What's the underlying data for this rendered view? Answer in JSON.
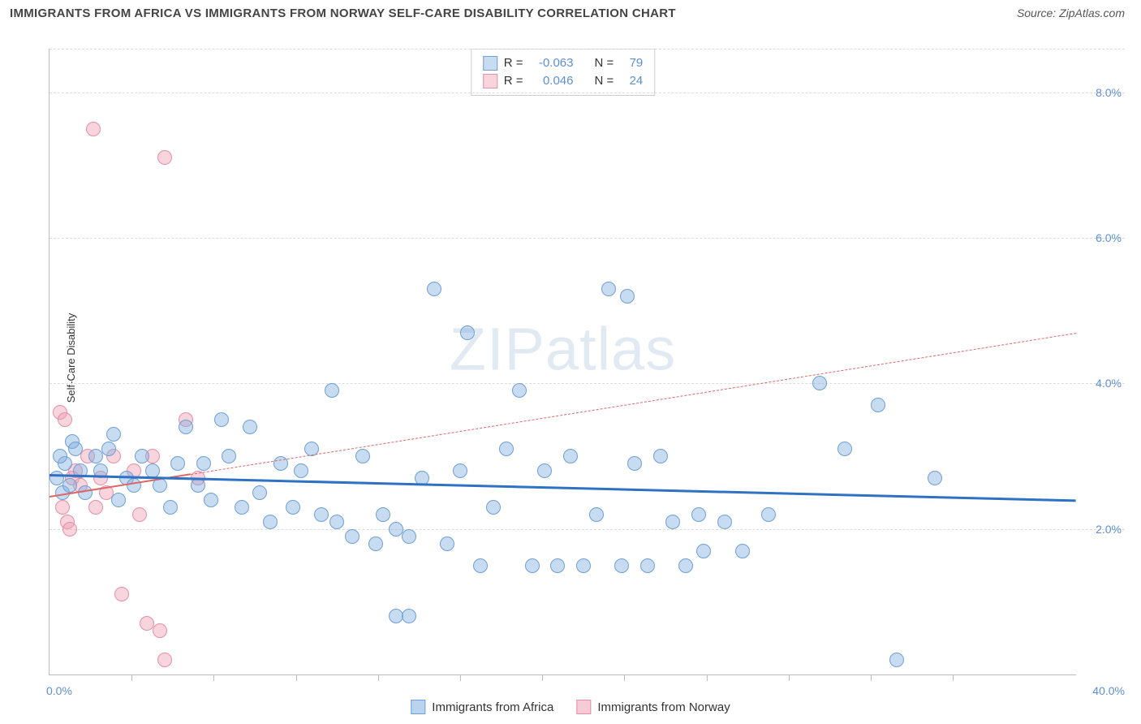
{
  "header": {
    "title": "IMMIGRANTS FROM AFRICA VS IMMIGRANTS FROM NORWAY SELF-CARE DISABILITY CORRELATION CHART",
    "source": "Source: ZipAtlas.com"
  },
  "axes": {
    "y_label": "Self-Care Disability",
    "x_min": 0,
    "x_max": 40,
    "y_min": 0,
    "y_max": 8.6,
    "x_origin_label": "0.0%",
    "x_max_label": "40.0%",
    "y_ticks": [
      {
        "v": 2.0,
        "label": "2.0%"
      },
      {
        "v": 4.0,
        "label": "4.0%"
      },
      {
        "v": 6.0,
        "label": "6.0%"
      },
      {
        "v": 8.0,
        "label": "8.0%"
      }
    ],
    "x_tick_positions": [
      3.2,
      6.4,
      9.6,
      12.8,
      16.0,
      19.2,
      22.4,
      25.6,
      28.8,
      32.0,
      35.2
    ],
    "axis_color": "#bbbbbb",
    "grid_color": "#dddddd",
    "tick_text_color": "#5b8fd6"
  },
  "watermark": "ZIPatlas",
  "series": {
    "africa": {
      "label": "Immigrants from Africa",
      "color_fill": "rgba(130,175,225,0.45)",
      "color_stroke": "#6f9fd6",
      "reg_color": "#2f72c4",
      "reg_width": 3,
      "reg_dash": "solid",
      "marker_radius": 9,
      "R": "-0.063",
      "N": "79",
      "regression": {
        "x1": 0,
        "y1": 2.75,
        "x2": 40,
        "y2": 2.4
      },
      "points": [
        [
          0.3,
          2.7
        ],
        [
          0.6,
          2.9
        ],
        [
          0.9,
          3.2
        ],
        [
          0.5,
          2.5
        ],
        [
          0.8,
          2.6
        ],
        [
          1.0,
          3.1
        ],
        [
          1.2,
          2.8
        ],
        [
          1.4,
          2.5
        ],
        [
          1.8,
          3.0
        ],
        [
          2.0,
          2.8
        ],
        [
          2.3,
          3.1
        ],
        [
          2.5,
          3.3
        ],
        [
          2.7,
          2.4
        ],
        [
          3.0,
          2.7
        ],
        [
          3.3,
          2.6
        ],
        [
          3.6,
          3.0
        ],
        [
          4.0,
          2.8
        ],
        [
          4.3,
          2.6
        ],
        [
          4.7,
          2.3
        ],
        [
          5.0,
          2.9
        ],
        [
          5.3,
          3.4
        ],
        [
          5.8,
          2.6
        ],
        [
          6.0,
          2.9
        ],
        [
          6.3,
          2.4
        ],
        [
          6.7,
          3.5
        ],
        [
          7.0,
          3.0
        ],
        [
          7.5,
          2.3
        ],
        [
          7.8,
          3.4
        ],
        [
          8.2,
          2.5
        ],
        [
          8.6,
          2.1
        ],
        [
          9.0,
          2.9
        ],
        [
          9.5,
          2.3
        ],
        [
          9.8,
          2.8
        ],
        [
          10.2,
          3.1
        ],
        [
          10.6,
          2.2
        ],
        [
          11.0,
          3.9
        ],
        [
          11.2,
          2.1
        ],
        [
          11.8,
          1.9
        ],
        [
          12.2,
          3.0
        ],
        [
          12.7,
          1.8
        ],
        [
          13.0,
          2.2
        ],
        [
          13.5,
          2.0
        ],
        [
          13.5,
          0.8
        ],
        [
          14.0,
          1.9
        ],
        [
          14.0,
          0.8
        ],
        [
          14.5,
          2.7
        ],
        [
          15.0,
          5.3
        ],
        [
          15.5,
          1.8
        ],
        [
          16.0,
          2.8
        ],
        [
          16.3,
          4.7
        ],
        [
          16.8,
          1.5
        ],
        [
          17.3,
          2.3
        ],
        [
          17.8,
          3.1
        ],
        [
          18.3,
          3.9
        ],
        [
          18.8,
          1.5
        ],
        [
          19.3,
          2.8
        ],
        [
          19.8,
          1.5
        ],
        [
          20.3,
          3.0
        ],
        [
          20.8,
          1.5
        ],
        [
          21.3,
          2.2
        ],
        [
          21.8,
          5.3
        ],
        [
          22.3,
          1.5
        ],
        [
          22.5,
          5.2
        ],
        [
          22.8,
          2.9
        ],
        [
          23.3,
          1.5
        ],
        [
          23.8,
          3.0
        ],
        [
          24.3,
          2.1
        ],
        [
          24.8,
          1.5
        ],
        [
          25.3,
          2.2
        ],
        [
          25.5,
          1.7
        ],
        [
          26.3,
          2.1
        ],
        [
          27.0,
          1.7
        ],
        [
          28.0,
          2.2
        ],
        [
          30.0,
          4.0
        ],
        [
          31.0,
          3.1
        ],
        [
          32.3,
          3.7
        ],
        [
          34.5,
          2.7
        ],
        [
          33.0,
          0.2
        ],
        [
          0.4,
          3.0
        ]
      ]
    },
    "norway": {
      "label": "Immigrants from Norway",
      "color_fill": "rgba(240,160,180,0.45)",
      "color_stroke": "#e58fa6",
      "reg_color": "#d66",
      "reg_width": 1.5,
      "reg_dash": "dashed",
      "marker_radius": 9,
      "R": "0.046",
      "N": "24",
      "regression": {
        "x1": 0,
        "y1": 2.45,
        "x2": 40,
        "y2": 4.7
      },
      "regression_solid_until": 5.5,
      "points": [
        [
          0.4,
          3.6
        ],
        [
          0.6,
          3.5
        ],
        [
          0.9,
          2.7
        ],
        [
          0.5,
          2.3
        ],
        [
          0.7,
          2.1
        ],
        [
          1.0,
          2.8
        ],
        [
          1.2,
          2.6
        ],
        [
          0.8,
          2.0
        ],
        [
          1.7,
          7.5
        ],
        [
          1.5,
          3.0
        ],
        [
          1.8,
          2.3
        ],
        [
          2.0,
          2.7
        ],
        [
          2.2,
          2.5
        ],
        [
          2.5,
          3.0
        ],
        [
          2.8,
          1.1
        ],
        [
          3.3,
          2.8
        ],
        [
          3.5,
          2.2
        ],
        [
          3.8,
          0.7
        ],
        [
          4.0,
          3.0
        ],
        [
          4.3,
          0.6
        ],
        [
          4.5,
          0.2
        ],
        [
          4.5,
          7.1
        ],
        [
          5.3,
          3.5
        ],
        [
          5.8,
          2.7
        ]
      ]
    }
  },
  "stats_box": {
    "rows": [
      {
        "swatch_fill": "rgba(130,175,225,0.45)",
        "swatch_stroke": "#6f9fd6",
        "R": "-0.063",
        "N": "79"
      },
      {
        "swatch_fill": "rgba(240,160,180,0.45)",
        "swatch_stroke": "#e58fa6",
        "R": "0.046",
        "N": "24"
      }
    ],
    "R_label": "R =",
    "N_label": "N ="
  },
  "legend": {
    "items": [
      {
        "swatch_fill": "rgba(130,175,225,0.55)",
        "swatch_stroke": "#6f9fd6",
        "label": "Immigrants from Africa"
      },
      {
        "swatch_fill": "rgba(240,160,180,0.55)",
        "swatch_stroke": "#e58fa6",
        "label": "Immigrants from Norway"
      }
    ]
  },
  "chart_style": {
    "type": "scatter",
    "background_color": "#ffffff",
    "title_fontsize": 15,
    "label_fontsize": 13,
    "tick_fontsize": 14
  }
}
